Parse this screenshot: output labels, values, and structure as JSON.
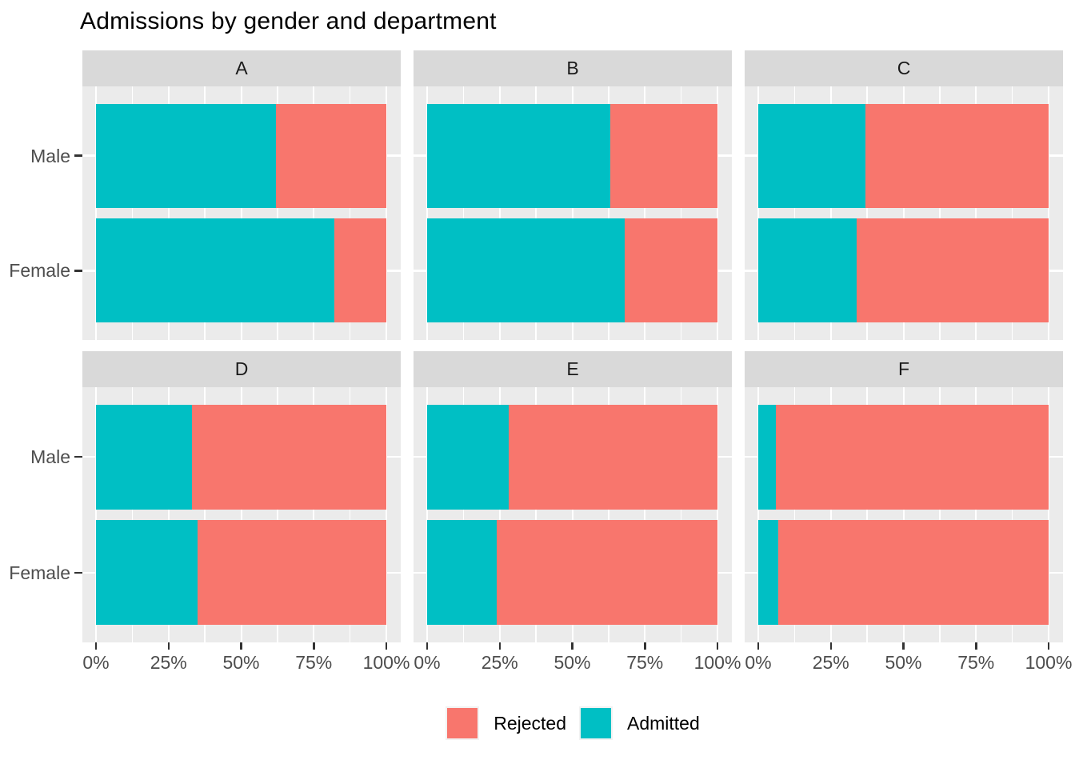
{
  "chart_data": {
    "type": "bar",
    "subtype": "horizontal-stacked-100percent-faceted",
    "title": "Admissions by gender and department",
    "facet_variable_values": [
      "A",
      "B",
      "C",
      "D",
      "E",
      "F"
    ],
    "categories": [
      "Male",
      "Female"
    ],
    "series_names": [
      "Rejected",
      "Admitted"
    ],
    "facets": [
      {
        "label": "A",
        "rows": [
          {
            "category": "Male",
            "admitted_pct": 62,
            "rejected_pct": 38
          },
          {
            "category": "Female",
            "admitted_pct": 82,
            "rejected_pct": 18
          }
        ]
      },
      {
        "label": "B",
        "rows": [
          {
            "category": "Male",
            "admitted_pct": 63,
            "rejected_pct": 37
          },
          {
            "category": "Female",
            "admitted_pct": 68,
            "rejected_pct": 32
          }
        ]
      },
      {
        "label": "C",
        "rows": [
          {
            "category": "Male",
            "admitted_pct": 37,
            "rejected_pct": 63
          },
          {
            "category": "Female",
            "admitted_pct": 34,
            "rejected_pct": 66
          }
        ]
      },
      {
        "label": "D",
        "rows": [
          {
            "category": "Male",
            "admitted_pct": 33,
            "rejected_pct": 67
          },
          {
            "category": "Female",
            "admitted_pct": 35,
            "rejected_pct": 65
          }
        ]
      },
      {
        "label": "E",
        "rows": [
          {
            "category": "Male",
            "admitted_pct": 28,
            "rejected_pct": 72
          },
          {
            "category": "Female",
            "admitted_pct": 24,
            "rejected_pct": 76
          }
        ]
      },
      {
        "label": "F",
        "rows": [
          {
            "category": "Male",
            "admitted_pct": 6,
            "rejected_pct": 94
          },
          {
            "category": "Female",
            "admitted_pct": 7,
            "rejected_pct": 93
          }
        ]
      }
    ],
    "x_axis": {
      "tick_labels": [
        "0%",
        "25%",
        "50%",
        "75%",
        "100%"
      ],
      "range_pct": [
        0,
        100
      ],
      "minor_gridlines_pct": [
        12.5,
        37.5,
        62.5,
        87.5
      ]
    },
    "y_axis": {
      "category_labels": [
        "Male",
        "Female"
      ]
    },
    "legend": {
      "position": "bottom",
      "items": [
        {
          "label": "Rejected",
          "color": "#F8766D"
        },
        {
          "label": "Admitted",
          "color": "#00BFC4"
        }
      ]
    },
    "colors": {
      "admitted": "#00BFC4",
      "rejected": "#F8766D",
      "panel_background": "#EBEBEB",
      "strip_background": "#D9D9D9",
      "gridline": "#FFFFFF",
      "axis_text": "#4D4D4D",
      "tick_mark": "#333333",
      "title_text": "#000000"
    }
  }
}
